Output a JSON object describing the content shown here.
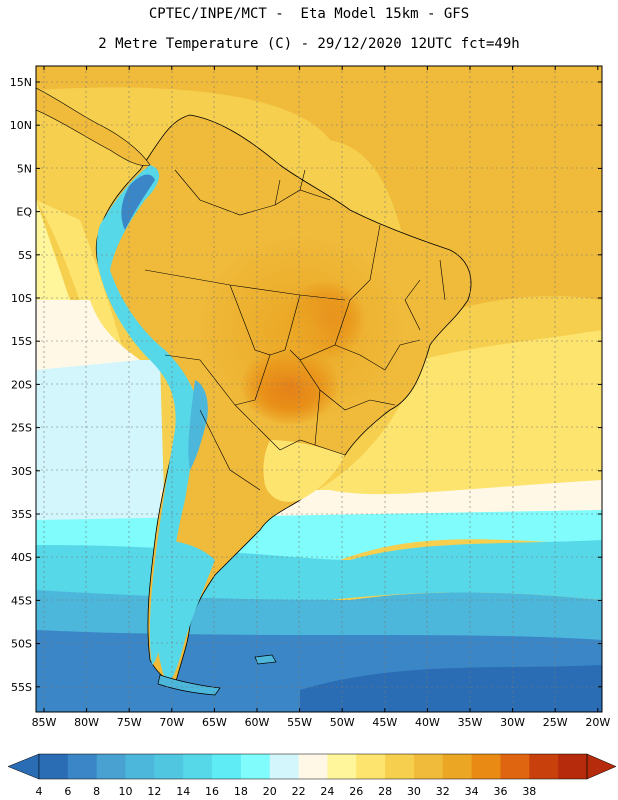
{
  "title": {
    "line1": "CPTEC/INPE/MCT -  Eta Model 15km - GFS",
    "line2": "2 Metre Temperature (C) - 29/12/2020 12UTC fct=49h"
  },
  "map": {
    "lat_labels": [
      "15N",
      "10N",
      "5N",
      "EQ",
      "5S",
      "10S",
      "15S",
      "20S",
      "25S",
      "30S",
      "35S",
      "40S",
      "45S",
      "50S",
      "55S"
    ],
    "lon_labels": [
      "85W",
      "80W",
      "75W",
      "70W",
      "65W",
      "60W",
      "55W",
      "50W",
      "45W",
      "40W",
      "35W",
      "30W",
      "25W",
      "20W"
    ]
  },
  "colorbar": {
    "labels": [
      "4",
      "6",
      "8",
      "10",
      "12",
      "14",
      "16",
      "18",
      "20",
      "22",
      "24",
      "26",
      "28",
      "30",
      "32",
      "34",
      "36",
      "38"
    ],
    "colors": [
      "#2a6db5",
      "#3b86c6",
      "#48a1d1",
      "#4db6db",
      "#51c6e0",
      "#56d8e8",
      "#5fecf5",
      "#7ffcfb",
      "#d2f6fb",
      "#fff8e6",
      "#fff59a",
      "#fde46e",
      "#f6cf4e",
      "#f0bb3b",
      "#eba624",
      "#e88a14",
      "#df6511",
      "#c8400c",
      "#b52b0b"
    ],
    "low_arrow": "#2a6db5",
    "high_arrow": "#b52b0b"
  }
}
